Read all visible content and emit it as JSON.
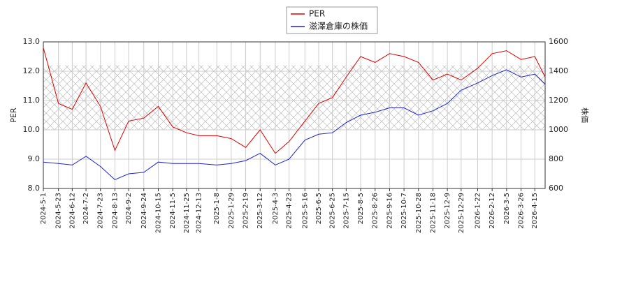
{
  "chart_data": {
    "type": "line",
    "x": [
      "2024-5-1",
      "2024-5-23",
      "2024-6-12",
      "2024-7-2",
      "2024-7-23",
      "2024-8-13",
      "2024-9-2",
      "2024-9-24",
      "2024-10-15",
      "2024-11-5",
      "2024-11-25",
      "2024-12-13",
      "2025-1-8",
      "2025-1-29",
      "2025-2-19",
      "2025-3-12",
      "2025-4-3",
      "2025-4-23",
      "2025-5-16",
      "2025-6-5",
      "2025-6-25",
      "2025-7-15",
      "2025-8-5",
      "2025-8-26",
      "2025-9-16",
      "2025-10-7",
      "2025-10-28",
      "2025-11-18",
      "2025-12-9",
      "2025-12-29",
      "2026-1-22",
      "2026-2-12",
      "2026-3-5",
      "2026-3-26",
      "2026-4-15",
      "2026-4-30"
    ],
    "series": [
      {
        "name": "PER",
        "color": "#dd0000",
        "axis": "y",
        "values": [
          12.8,
          10.9,
          10.7,
          11.6,
          10.8,
          9.3,
          10.3,
          10.4,
          10.8,
          10.1,
          9.9,
          9.8,
          9.8,
          9.7,
          9.4,
          10.0,
          9.2,
          9.6,
          10.3,
          10.9,
          11.1,
          11.8,
          12.5,
          12.3,
          12.6,
          12.5,
          12.3,
          11.7,
          11.9,
          11.7,
          12.1,
          12.6,
          12.7,
          12.4,
          12.5,
          11.8
        ]
      },
      {
        "name": "滋澤倉庫の株価",
        "color": "#2222cc",
        "axis": "y2",
        "values": [
          780,
          770,
          760,
          820,
          750,
          660,
          700,
          710,
          780,
          770,
          770,
          770,
          760,
          770,
          790,
          840,
          760,
          800,
          930,
          970,
          980,
          1050,
          1100,
          1120,
          1150,
          1150,
          1100,
          1130,
          1180,
          1270,
          1320,
          1370,
          1410,
          1360,
          1380,
          1310
        ]
      }
    ],
    "xlim": [
      "2024-5-1",
      "2026-4-30"
    ],
    "xticks": [
      "2024-5-1",
      "2024-5-23",
      "2024-6-12",
      "2024-7-2",
      "2024-7-23",
      "2024-8-13",
      "2024-9-2",
      "2024-9-24",
      "2024-10-15",
      "2024-11-5",
      "2024-11-25",
      "2024-12-13",
      "2025-1-8",
      "2025-1-29",
      "2025-2-19",
      "2025-3-12",
      "2025-4-3",
      "2025-4-23",
      "2025-5-16",
      "2025-6-5",
      "2025-6-25",
      "2025-7-15",
      "2025-8-5",
      "2025-8-26",
      "2025-9-16",
      "2025-10-7",
      "2025-10-28",
      "2025-11-18",
      "2025-12-9",
      "2025-12-29",
      "2026-1-22",
      "2026-2-12",
      "2026-3-5",
      "2026-3-26",
      "2026-4-15"
    ],
    "ylabel": "PER",
    "ylim": [
      8,
      13
    ],
    "yticks": [
      {
        "value": 8,
        "label": "8.0"
      },
      {
        "value": 9,
        "label": "9.0"
      },
      {
        "value": 10,
        "label": "10.0"
      },
      {
        "value": 11,
        "label": "11.0"
      },
      {
        "value": 12,
        "label": "12.0"
      },
      {
        "value": 13,
        "label": "13.0"
      }
    ],
    "y2label": "株価",
    "y2lim": [
      600,
      1600
    ],
    "y2ticks": [
      600,
      800,
      1000,
      1200,
      1400,
      1600
    ],
    "shaded_range": [
      10,
      12.2
    ],
    "grid": true
  }
}
